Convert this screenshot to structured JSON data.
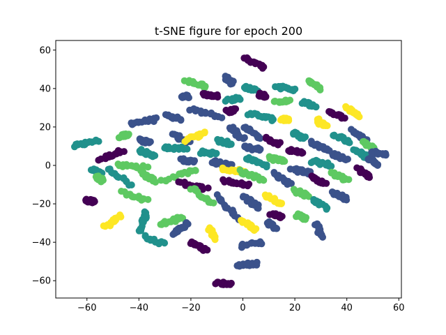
{
  "chart_data": {
    "type": "scatter",
    "title": "t-SNE figure for epoch 200",
    "xlabel": "",
    "ylabel": "",
    "xlim": [
      -72,
      61
    ],
    "ylim": [
      -69,
      65
    ],
    "x_ticks": [
      -60,
      -40,
      -20,
      0,
      20,
      40,
      60
    ],
    "y_ticks": [
      -60,
      -40,
      -20,
      0,
      20,
      40,
      60
    ],
    "x_tick_labels": [
      "−60",
      "−40",
      "−20",
      "0",
      "20",
      "40",
      "60"
    ],
    "y_tick_labels": [
      "−60",
      "−40",
      "−20",
      "0",
      "20",
      "40",
      "60"
    ],
    "grid": false,
    "legend": "none",
    "palette": [
      "#440154",
      "#3b528b",
      "#21918c",
      "#5ec962",
      "#fde725"
    ],
    "clusters": [
      {
        "x0": -65,
        "y0": 10,
        "x1": -56,
        "y1": 13,
        "c": 2
      },
      {
        "x0": -55,
        "y0": 3,
        "x1": -46,
        "y1": 8,
        "c": 0
      },
      {
        "x0": -58,
        "y0": -2,
        "x1": -55,
        "y1": -4,
        "c": 2
      },
      {
        "x0": -56,
        "y0": -6,
        "x1": -54,
        "y1": -8,
        "c": 3
      },
      {
        "x0": -52,
        "y0": -2,
        "x1": -43,
        "y1": -10,
        "c": 2
      },
      {
        "x0": -47,
        "y0": 15,
        "x1": -44,
        "y1": 16,
        "c": 3
      },
      {
        "x0": -43,
        "y0": 22,
        "x1": -33,
        "y1": 24,
        "c": 1
      },
      {
        "x0": -40,
        "y0": 13,
        "x1": -36,
        "y1": 12,
        "c": 1
      },
      {
        "x0": -40,
        "y0": 8,
        "x1": -34,
        "y1": 5,
        "c": 2
      },
      {
        "x0": -48,
        "y0": 0,
        "x1": -37,
        "y1": -1,
        "c": 3
      },
      {
        "x0": -40,
        "y0": -3,
        "x1": -34,
        "y1": -8,
        "c": 3
      },
      {
        "x0": -46,
        "y0": -14,
        "x1": -37,
        "y1": -18,
        "c": 3
      },
      {
        "x0": -60,
        "y0": -18,
        "x1": -57,
        "y1": -19,
        "c": 0
      },
      {
        "x0": -47,
        "y0": -26,
        "x1": -53,
        "y1": -32,
        "c": 4
      },
      {
        "x0": -37,
        "y0": -24,
        "x1": -40,
        "y1": -34,
        "c": 2
      },
      {
        "x0": -38,
        "y0": -37,
        "x1": -30,
        "y1": -41,
        "c": 2
      },
      {
        "x0": -29,
        "y0": 26,
        "x1": -24,
        "y1": 24,
        "c": 1
      },
      {
        "x0": -27,
        "y0": 16,
        "x1": -21,
        "y1": 12,
        "c": 1
      },
      {
        "x0": -22,
        "y0": 13,
        "x1": -15,
        "y1": 17,
        "c": 4
      },
      {
        "x0": -20,
        "y0": 29,
        "x1": -8,
        "y1": 25,
        "c": 1
      },
      {
        "x0": -22,
        "y0": 44,
        "x1": -14,
        "y1": 41,
        "c": 3
      },
      {
        "x0": -24,
        "y0": 36,
        "x1": -21,
        "y1": 36,
        "c": 1
      },
      {
        "x0": -15,
        "y0": 37,
        "x1": -10,
        "y1": 36,
        "c": 0
      },
      {
        "x0": -30,
        "y0": 9,
        "x1": -22,
        "y1": 9,
        "c": 2
      },
      {
        "x0": -24,
        "y0": 3,
        "x1": -18,
        "y1": 2,
        "c": 1
      },
      {
        "x0": -16,
        "y0": 7,
        "x1": -10,
        "y1": 6,
        "c": 2
      },
      {
        "x0": -31,
        "y0": -8,
        "x1": -18,
        "y1": -2,
        "c": 3
      },
      {
        "x0": -24,
        "y0": -9,
        "x1": -14,
        "y1": -12,
        "c": 0
      },
      {
        "x0": -20,
        "y0": -12,
        "x1": -12,
        "y1": -20,
        "c": 3
      },
      {
        "x0": -23,
        "y0": -27,
        "x1": -32,
        "y1": -31,
        "c": 3
      },
      {
        "x0": -21,
        "y0": -30,
        "x1": -27,
        "y1": -36,
        "c": 1
      },
      {
        "x0": -20,
        "y0": -40,
        "x1": -14,
        "y1": -44,
        "c": 0
      },
      {
        "x0": -13,
        "y0": -33,
        "x1": -10,
        "y1": -38,
        "c": 4
      },
      {
        "x0": -10,
        "y0": -16,
        "x1": -2,
        "y1": -28,
        "c": 1
      },
      {
        "x0": -10,
        "y0": -61,
        "x1": -4,
        "y1": -62,
        "c": 0
      },
      {
        "x0": -7,
        "y0": 46,
        "x1": -4,
        "y1": 43,
        "c": 1
      },
      {
        "x0": -6,
        "y0": 34,
        "x1": -1,
        "y1": 35,
        "c": 2
      },
      {
        "x0": -6,
        "y0": 28,
        "x1": -3,
        "y1": 29,
        "c": 0
      },
      {
        "x0": -5,
        "y0": 20,
        "x1": 0,
        "y1": 14,
        "c": 1
      },
      {
        "x0": -9,
        "y0": 13,
        "x1": -4,
        "y1": 11,
        "c": 2
      },
      {
        "x0": -12,
        "y0": 2,
        "x1": -5,
        "y1": 0,
        "c": 1
      },
      {
        "x0": -8,
        "y0": -2,
        "x1": 0,
        "y1": -3,
        "c": 4
      },
      {
        "x0": -7,
        "y0": -8,
        "x1": 2,
        "y1": -10,
        "c": 0
      },
      {
        "x0": 0,
        "y0": 56,
        "x1": 8,
        "y1": 51,
        "c": 0
      },
      {
        "x0": 0,
        "y0": 41,
        "x1": 5,
        "y1": 39,
        "c": 2
      },
      {
        "x0": 2,
        "y0": 27,
        "x1": 12,
        "y1": 24,
        "c": 2
      },
      {
        "x0": 1,
        "y0": 20,
        "x1": 7,
        "y1": 14,
        "c": 1
      },
      {
        "x0": 0,
        "y0": 10,
        "x1": 7,
        "y1": 8,
        "c": 1
      },
      {
        "x0": 2,
        "y0": 4,
        "x1": 9,
        "y1": 0,
        "c": 2
      },
      {
        "x0": -1,
        "y0": -3,
        "x1": 8,
        "y1": -8,
        "c": 3
      },
      {
        "x0": 0,
        "y0": -16,
        "x1": 6,
        "y1": -22,
        "c": 1
      },
      {
        "x0": 0,
        "y0": -29,
        "x1": 5,
        "y1": -33,
        "c": 4
      },
      {
        "x0": -1,
        "y0": -42,
        "x1": 7,
        "y1": -40,
        "c": 1
      },
      {
        "x0": -2,
        "y0": -52,
        "x1": 6,
        "y1": -51,
        "c": 1
      },
      {
        "x0": 6,
        "y0": 37,
        "x1": 9,
        "y1": 36,
        "c": 0
      },
      {
        "x0": 9,
        "y0": 14,
        "x1": 14,
        "y1": 11,
        "c": 0
      },
      {
        "x0": 10,
        "y0": 4,
        "x1": 16,
        "y1": 2,
        "c": 3
      },
      {
        "x0": 12,
        "y0": -4,
        "x1": 18,
        "y1": -10,
        "c": 1
      },
      {
        "x0": 9,
        "y0": -16,
        "x1": 15,
        "y1": -20,
        "c": 4
      },
      {
        "x0": 11,
        "y0": -25,
        "x1": 15,
        "y1": -27,
        "c": 0
      },
      {
        "x0": 10,
        "y0": -30,
        "x1": 13,
        "y1": -33,
        "c": 1
      },
      {
        "x0": 13,
        "y0": 41,
        "x1": 20,
        "y1": 39,
        "c": 2
      },
      {
        "x0": 12,
        "y0": 33,
        "x1": 18,
        "y1": 34,
        "c": 3
      },
      {
        "x0": 15,
        "y0": 24,
        "x1": 17,
        "y1": 24,
        "c": 4
      },
      {
        "x0": 19,
        "y0": 17,
        "x1": 24,
        "y1": 14,
        "c": 2
      },
      {
        "x0": 18,
        "y0": 8,
        "x1": 23,
        "y1": 6,
        "c": 0
      },
      {
        "x0": 19,
        "y0": -2,
        "x1": 26,
        "y1": -4,
        "c": 1
      },
      {
        "x0": 20,
        "y0": -13,
        "x1": 25,
        "y1": -16,
        "c": 3
      },
      {
        "x0": 21,
        "y0": -26,
        "x1": 24,
        "y1": -28,
        "c": 3
      },
      {
        "x0": 25,
        "y0": 44,
        "x1": 30,
        "y1": 40,
        "c": 3
      },
      {
        "x0": 23,
        "y0": 33,
        "x1": 28,
        "y1": 31,
        "c": 2
      },
      {
        "x0": 28,
        "y0": 24,
        "x1": 32,
        "y1": 20,
        "c": 4
      },
      {
        "x0": 26,
        "y0": 12,
        "x1": 33,
        "y1": 8,
        "c": 1
      },
      {
        "x0": 27,
        "y0": 2,
        "x1": 34,
        "y1": 0,
        "c": 2
      },
      {
        "x0": 26,
        "y0": -6,
        "x1": 32,
        "y1": -10,
        "c": 0
      },
      {
        "x0": 27,
        "y0": -18,
        "x1": 32,
        "y1": -22,
        "c": 2
      },
      {
        "x0": 28,
        "y0": -30,
        "x1": 30,
        "y1": -37,
        "c": 1
      },
      {
        "x0": 33,
        "y0": 28,
        "x1": 39,
        "y1": 25,
        "c": 0
      },
      {
        "x0": 35,
        "y0": 16,
        "x1": 41,
        "y1": 12,
        "c": 2
      },
      {
        "x0": 34,
        "y0": 6,
        "x1": 40,
        "y1": 3,
        "c": 1
      },
      {
        "x0": 34,
        "y0": -4,
        "x1": 40,
        "y1": -8,
        "c": 3
      },
      {
        "x0": 35,
        "y0": -14,
        "x1": 40,
        "y1": -18,
        "c": 1
      },
      {
        "x0": 40,
        "y0": 30,
        "x1": 44,
        "y1": 26,
        "c": 4
      },
      {
        "x0": 42,
        "y0": 18,
        "x1": 47,
        "y1": 14,
        "c": 1
      },
      {
        "x0": 43,
        "y0": 8,
        "x1": 48,
        "y1": 4,
        "c": 2
      },
      {
        "x0": 44,
        "y0": -2,
        "x1": 49,
        "y1": -6,
        "c": 0
      },
      {
        "x0": 46,
        "y0": 12,
        "x1": 50,
        "y1": 9,
        "c": 3
      },
      {
        "x0": 48,
        "y0": 4,
        "x1": 52,
        "y1": 0,
        "c": 1
      },
      {
        "x0": 50,
        "y0": 7,
        "x1": 55,
        "y1": 6,
        "c": 1
      }
    ]
  }
}
